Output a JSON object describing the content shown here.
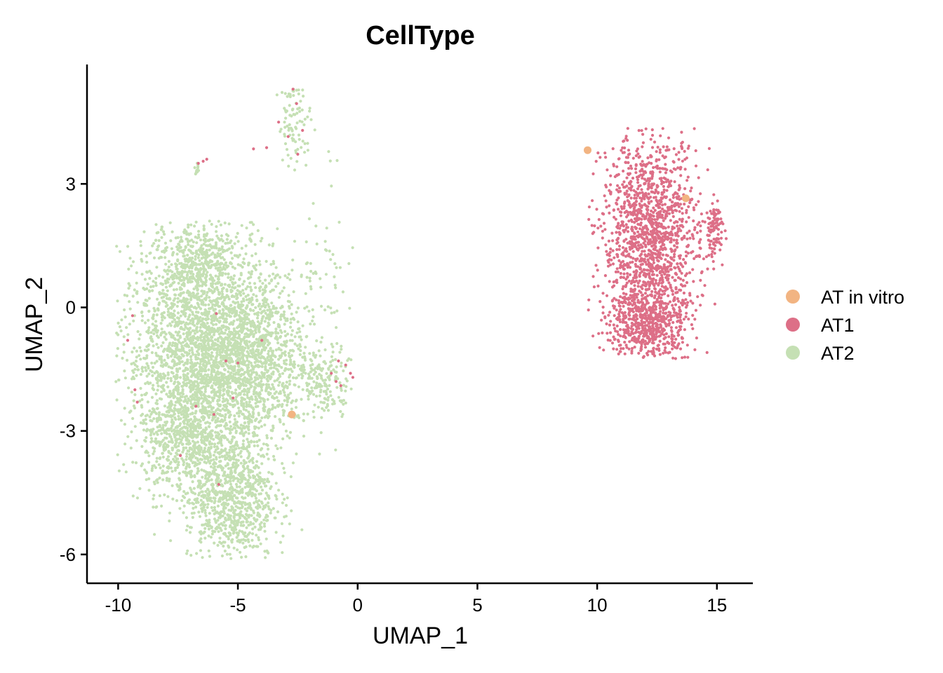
{
  "chart_data": {
    "type": "scatter",
    "title": "CellType",
    "xlabel": "UMAP_1",
    "ylabel": "UMAP_2",
    "xlim": [
      -11.3,
      16.5
    ],
    "ylim": [
      -6.7,
      5.9
    ],
    "x_ticks": [
      -10,
      -5,
      0,
      5,
      10,
      15
    ],
    "x_tick_labels": [
      "-10",
      "-5",
      "0",
      "5",
      "10",
      "15"
    ],
    "y_ticks": [
      -6,
      -3,
      0,
      3
    ],
    "y_tick_labels": [
      "-6",
      "-3",
      "0",
      "3"
    ],
    "grid": false,
    "legend_position": "right",
    "series": [
      {
        "name": "AT in vitro",
        "color": "#F2B482",
        "points": [
          [
            -2.75,
            -2.6
          ],
          [
            9.6,
            3.82
          ],
          [
            13.7,
            2.65
          ]
        ]
      },
      {
        "name": "AT1",
        "color": "#DD6F87",
        "clusters": [
          {
            "cx": 12.2,
            "cy": 1.6,
            "sx": 1.0,
            "sy": 1.3,
            "n": 1500,
            "xmin": 9.6,
            "xmax": 15.4,
            "ymin": -1.25,
            "ymax": 4.35
          },
          {
            "cx": 12.1,
            "cy": -0.4,
            "sx": 0.8,
            "sy": 0.45,
            "n": 450,
            "xmin": 10.0,
            "xmax": 14.0,
            "ymin": -1.25,
            "ymax": 1.0
          },
          {
            "cx": 14.9,
            "cy": 1.9,
            "sx": 0.22,
            "sy": 0.35,
            "n": 100,
            "xmin": 14.3,
            "xmax": 15.4,
            "ymin": 0.9,
            "ymax": 2.8
          }
        ],
        "points": [
          [
            -6.65,
            3.5
          ],
          [
            -6.45,
            3.55
          ],
          [
            -6.3,
            3.6
          ],
          [
            -2.7,
            5.3
          ],
          [
            -2.55,
            4.95
          ],
          [
            -3.3,
            4.5
          ],
          [
            -2.9,
            4.15
          ],
          [
            -3.8,
            3.88
          ],
          [
            -4.35,
            3.85
          ],
          [
            -2.5,
            3.72
          ],
          [
            -2.3,
            4.3
          ],
          [
            -9.3,
            -2.0
          ],
          [
            -9.2,
            -2.3
          ],
          [
            -9.6,
            -0.8
          ],
          [
            -9.4,
            -0.2
          ],
          [
            -5.5,
            -1.3
          ],
          [
            -5.0,
            -1.35
          ],
          [
            -4.0,
            -0.8
          ],
          [
            -7.4,
            -3.6
          ],
          [
            -6.75,
            -2.4
          ],
          [
            -5.2,
            -2.2
          ],
          [
            -6.0,
            -2.6
          ],
          [
            -5.9,
            -0.15
          ],
          [
            -0.8,
            -1.3
          ],
          [
            -0.5,
            -1.4
          ],
          [
            -0.3,
            -1.6
          ],
          [
            -0.7,
            -1.9
          ],
          [
            -0.9,
            -1.8
          ],
          [
            -0.2,
            -1.7
          ],
          [
            -1.1,
            -1.6
          ],
          [
            -5.8,
            -4.3
          ]
        ]
      },
      {
        "name": "AT2",
        "color": "#C5E0B4",
        "clusters": [
          {
            "cx": -6.6,
            "cy": -1.0,
            "sx": 1.6,
            "sy": 1.5,
            "n": 2200,
            "xmin": -10.1,
            "xmax": -0.2,
            "ymin": -6.1,
            "ymax": 2.1
          },
          {
            "cx": -4.6,
            "cy": -1.3,
            "sx": 1.3,
            "sy": 1.0,
            "n": 1300,
            "xmin": -10.1,
            "xmax": -0.2,
            "ymin": -6.1,
            "ymax": 2.1
          },
          {
            "cx": -5.3,
            "cy": -4.6,
            "sx": 0.9,
            "sy": 0.8,
            "n": 850,
            "xmin": -10.1,
            "xmax": -0.2,
            "ymin": -6.1,
            "ymax": 2.1
          },
          {
            "cx": -7.2,
            "cy": -3.2,
            "sx": 0.9,
            "sy": 0.7,
            "n": 500,
            "xmin": -10.1,
            "xmax": -0.2,
            "ymin": -6.1,
            "ymax": 2.1
          },
          {
            "cx": -6.6,
            "cy": 1.1,
            "sx": 0.7,
            "sy": 0.5,
            "n": 300,
            "xmin": -10.1,
            "xmax": -0.2,
            "ymin": -6.1,
            "ymax": 2.1
          },
          {
            "cx": -1.3,
            "cy": -1.8,
            "sx": 0.6,
            "sy": 0.4,
            "n": 150,
            "xmin": -2.5,
            "xmax": -0.2,
            "ymin": -2.7,
            "ymax": -1.0
          },
          {
            "cx": -2.6,
            "cy": 4.5,
            "sx": 0.35,
            "sy": 0.55,
            "n": 85,
            "xmin": -4.0,
            "xmax": -1.8,
            "ymin": 3.3,
            "ymax": 5.35
          },
          {
            "cx": -1.2,
            "cy": 1.0,
            "sx": 0.7,
            "sy": 1.4,
            "n": 55,
            "xmin": -3.5,
            "xmax": -0.2,
            "ymin": -1.0,
            "ymax": 4.7
          },
          {
            "cx": -6.7,
            "cy": 3.35,
            "sx": 0.06,
            "sy": 0.12,
            "n": 12,
            "xmin": -6.9,
            "xmax": -6.5,
            "ymin": 3.15,
            "ymax": 3.55
          }
        ]
      }
    ]
  }
}
